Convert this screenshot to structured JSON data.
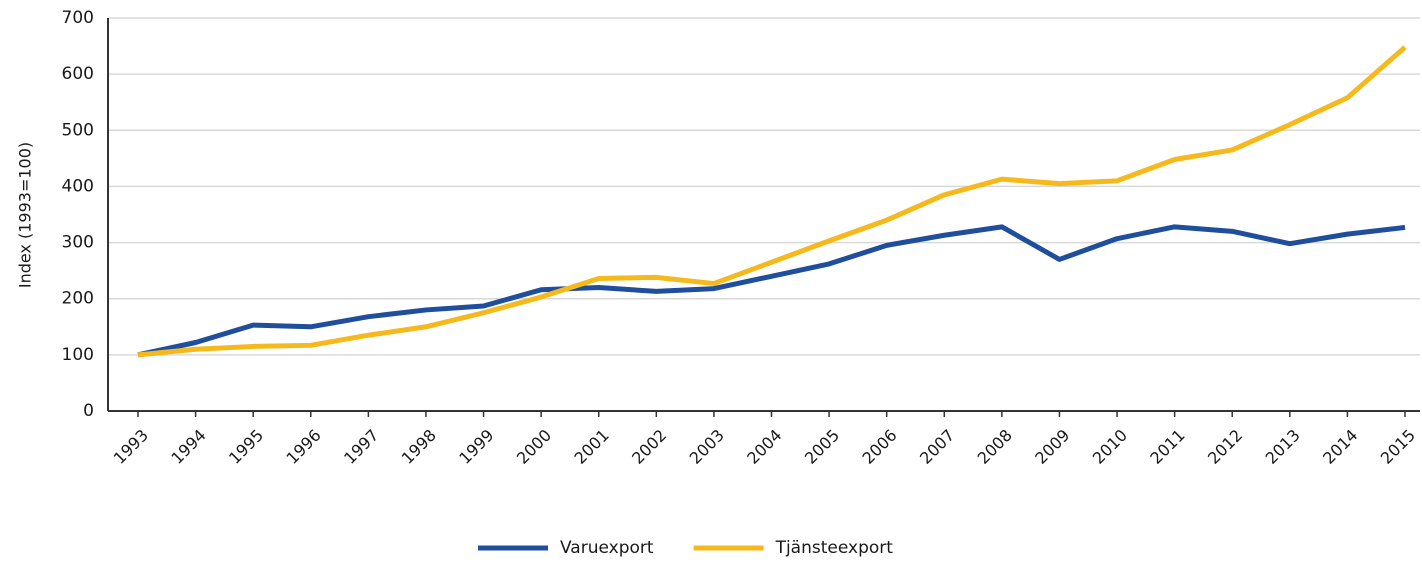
{
  "chart_data": {
    "type": "line",
    "categories": [
      "1993",
      "1994",
      "1995",
      "1996",
      "1997",
      "1998",
      "1999",
      "2000",
      "2001",
      "2002",
      "2003",
      "2004",
      "2005",
      "2006",
      "2007",
      "2008",
      "2009",
      "2010",
      "2011",
      "2012",
      "2013",
      "2014",
      "2015"
    ],
    "series": [
      {
        "name": "Varuexport",
        "color": "#1f4e9c",
        "values": [
          100,
          122,
          153,
          150,
          168,
          180,
          187,
          216,
          220,
          213,
          218,
          240,
          262,
          295,
          313,
          328,
          270,
          307,
          328,
          320,
          298,
          315,
          327
        ]
      },
      {
        "name": "Tjänsteexport",
        "color": "#f5b91c",
        "values": [
          100,
          110,
          115,
          117,
          135,
          150,
          175,
          203,
          236,
          238,
          227,
          265,
          303,
          340,
          385,
          413,
          405,
          410,
          448,
          465,
          510,
          558,
          648
        ]
      }
    ],
    "ylabel": "Index (1993=100)",
    "ylim": [
      0,
      700
    ],
    "yticks": [
      0,
      100,
      200,
      300,
      400,
      500,
      600,
      700
    ],
    "grid": true,
    "legend": "bottom"
  }
}
